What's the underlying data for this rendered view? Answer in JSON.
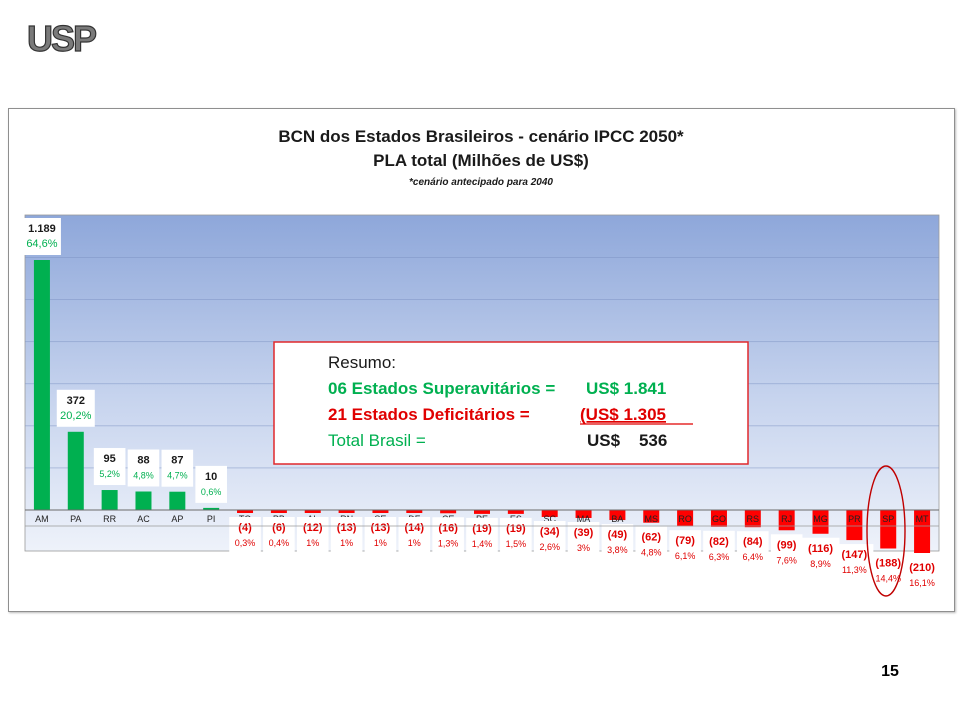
{
  "logo": {
    "text": "USP"
  },
  "page_number": "15",
  "colors": {
    "positive": "#00B050",
    "negative": "#FF0000",
    "label_green": "#00B050",
    "label_red": "#E00000",
    "box_border": "#E0282C",
    "ellipse": "#C00000"
  },
  "summary_box": {
    "heading": "Resumo:",
    "line1_label": "06 Estados Superavitários =",
    "line1_value": "US$ 1.841",
    "line2_label": "21 Estados Deficitários =",
    "line2_value": "(US$ 1.305",
    "line3_label": "Total Brasil =",
    "line3_value": "US$    536"
  },
  "chart_data": {
    "type": "bar",
    "title": "BCN dos Estados Brasileiros - cenário IPCC 2050*",
    "subtitle": "PLA total (Milhões de US$)",
    "footnote": "*cenário antecipado para 2040",
    "categories": [
      "AM",
      "PA",
      "RR",
      "AC",
      "AP",
      "PI",
      "TO",
      "PB",
      "AL",
      "RN",
      "SE",
      "DF",
      "CE",
      "PE",
      "ES",
      "SC",
      "MA",
      "BA",
      "MS",
      "RO",
      "GO",
      "RS",
      "RJ",
      "MG",
      "PR",
      "SP",
      "MT"
    ],
    "values": [
      1189,
      372,
      95,
      88,
      87,
      10,
      -4,
      -6,
      -12,
      -13,
      -13,
      -14,
      -16,
      -19,
      -19,
      -34,
      -39,
      -49,
      -62,
      -79,
      -82,
      -84,
      -99,
      -116,
      -147,
      -188,
      -210
    ],
    "value_labels": [
      "1.189",
      "372",
      "95",
      "88",
      "87",
      "10",
      "(4)",
      "(6)",
      "(12)",
      "(13)",
      "(13)",
      "(14)",
      "(16)",
      "(19)",
      "(19)",
      "(34)",
      "(39)",
      "(49)",
      "(62)",
      "(79)",
      "(82)",
      "(84)",
      "(99)",
      "(116)",
      "(147)",
      "(188)",
      "(210)"
    ],
    "percent_labels": [
      "64,6%",
      "20,2%",
      "5,2%",
      "4,8%",
      "4,7%",
      "0,6%",
      "0,3%",
      "0,4%",
      "1%",
      "1%",
      "1%",
      "1%",
      "1,3%",
      "1,4%",
      "1,5%",
      "2,6%",
      "3%",
      "3,8%",
      "4,8%",
      "6,1%",
      "6,3%",
      "6,4%",
      "7,6%",
      "8,9%",
      "11,3%",
      "14,4%",
      "16,1%"
    ],
    "xlabel": "",
    "ylabel": "",
    "ylim": [
      -300,
      1400
    ],
    "grid": true,
    "legend": "none",
    "highlight": "SP"
  }
}
